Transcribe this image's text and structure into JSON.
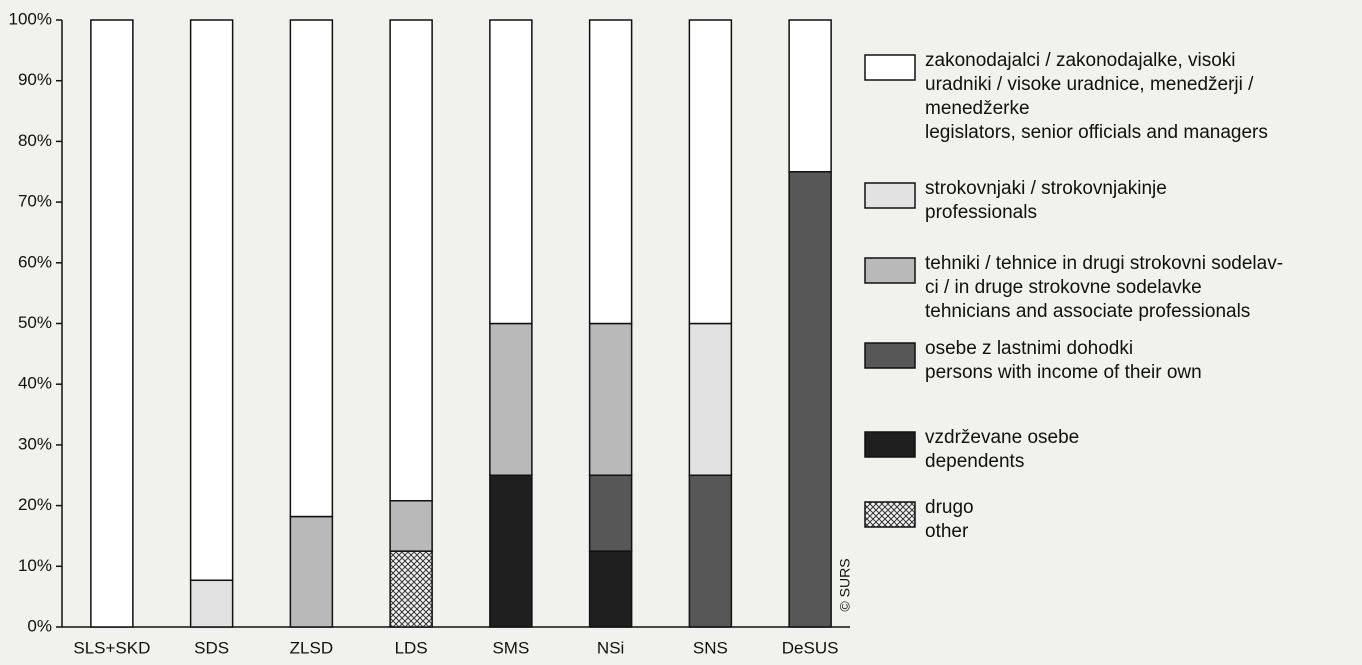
{
  "chart_data": {
    "type": "stacked_bar",
    "categories": [
      "SLS+SKD",
      "SDS",
      "ZLSD",
      "LDS",
      "SMS",
      "NSi",
      "SNS",
      "DeSUS"
    ],
    "series": [
      {
        "name": "zakonodajalci / zakonodajalke, visoki\nuradniki / visoke uradnice, menedžerji /\nmenedžerke\nlegislators, senior officials and managers",
        "color": "#ffffff",
        "values": [
          100,
          92.3,
          81.8,
          79.2,
          50,
          50,
          50,
          25
        ]
      },
      {
        "name": "strokovnjaki / strokovnjakinje\nprofessionals",
        "color": "#e2e2e2",
        "values": [
          0,
          7.7,
          0,
          0,
          0,
          0,
          25,
          0
        ]
      },
      {
        "name": "tehniki / tehnice in drugi strokovni sodelav-\nci / in druge strokovne sodelavke\ntehnicians and associate professionals",
        "color": "#b9b9b9",
        "values": [
          0,
          0,
          18.2,
          8.3,
          25,
          25,
          0,
          0
        ]
      },
      {
        "name": "osebe z lastnimi dohodki\npersons with income of their own",
        "color": "#575757",
        "values": [
          0,
          0,
          0,
          0,
          0,
          12.5,
          25,
          75
        ]
      },
      {
        "name": "vzdrževane osebe\ndependents",
        "color": "#1f1f1f",
        "values": [
          0,
          0,
          0,
          0,
          25,
          12.5,
          0,
          0
        ]
      },
      {
        "name": "drugo\nother",
        "color": "#d0d0d0",
        "pattern": "crosshatch",
        "values": [
          0,
          0,
          0,
          12.5,
          0,
          0,
          0,
          0
        ]
      }
    ],
    "ylim": [
      0,
      100
    ],
    "yticks": [
      {
        "value": 0,
        "label": "0%"
      },
      {
        "value": 10,
        "label": "10%"
      },
      {
        "value": 20,
        "label": "20%"
      },
      {
        "value": 30,
        "label": "30%"
      },
      {
        "value": 40,
        "label": "40%"
      },
      {
        "value": 50,
        "label": "50%"
      },
      {
        "value": 60,
        "label": "60%"
      },
      {
        "value": 70,
        "label": "70%"
      },
      {
        "value": 80,
        "label": "80%"
      },
      {
        "value": 90,
        "label": "90%"
      },
      {
        "value": 100,
        "label": "100%"
      }
    ],
    "annotation": "© SURS"
  }
}
